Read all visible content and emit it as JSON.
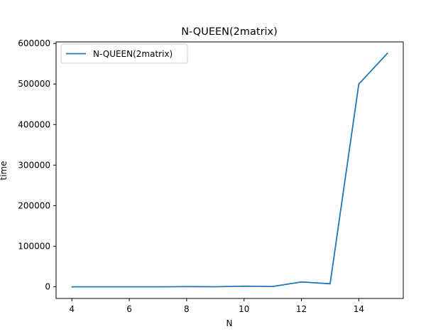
{
  "chart_data": {
    "type": "line",
    "title": "N-QUEEN(2matrix)",
    "xlabel": "N",
    "ylabel": "time",
    "xlim": [
      3.45,
      15.55
    ],
    "ylim": [
      -28750,
      603750
    ],
    "xticks": [
      4,
      6,
      8,
      10,
      12,
      14
    ],
    "yticks": [
      0,
      100000,
      200000,
      300000,
      400000,
      500000,
      600000
    ],
    "grid": false,
    "legend_position": "upper-left",
    "series": [
      {
        "name": "N-QUEEN(2matrix)",
        "color": "#1f77b4",
        "x": [
          4,
          5,
          6,
          7,
          8,
          9,
          10,
          11,
          12,
          13,
          14,
          15
        ],
        "y": [
          0,
          0,
          0,
          0,
          500,
          200,
          1500,
          800,
          12000,
          7500,
          500000,
          576000
        ]
      }
    ]
  }
}
